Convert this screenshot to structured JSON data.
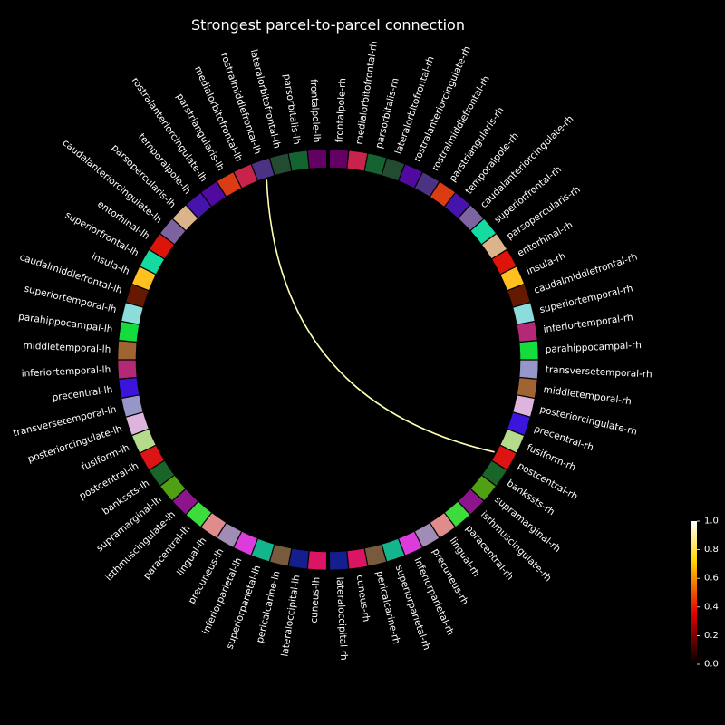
{
  "chart_data": {
    "type": "connectivity-circle",
    "title": "Strongest parcel-to-parcel connection",
    "left_hemisphere_labels": [
      "frontalpole-lh",
      "parsorbitalis-lh",
      "lateralorbitofrontal-lh",
      "rostralmiddlefrontal-lh",
      "medialorbitofrontal-lh",
      "parstriangularis-lh",
      "rostralanteriorcingulate-lh",
      "temporalpole-lh",
      "parsopercularis-lh",
      "caudalanteriorcingulate-lh",
      "entorhinal-lh",
      "superiorfrontal-lh",
      "insula-lh",
      "caudalmiddlefrontal-lh",
      "superiortemporal-lh",
      "parahippocampal-lh",
      "middletemporal-lh",
      "inferiortemporal-lh",
      "precentral-lh",
      "transversetemporal-lh",
      "posteriorcingulate-lh",
      "fusiform-lh",
      "postcentral-lh",
      "bankssts-lh",
      "supramarginal-lh",
      "isthmuscingulate-lh",
      "paracentral-lh",
      "lingual-lh",
      "precuneus-lh",
      "inferiorparietal-lh",
      "superiorparietal-lh",
      "pericalcarine-lh",
      "lateraloccipital-lh",
      "cuneus-lh"
    ],
    "right_hemisphere_labels": [
      "frontalpole-rh",
      "medialorbitofrontal-rh",
      "parsorbitalis-rh",
      "lateralorbitofrontal-rh",
      "rostralanteriorcingulate-rh",
      "rostralmiddlefrontal-rh",
      "parstriangularis-rh",
      "temporalpole-rh",
      "caudalanteriorcingulate-rh",
      "superiorfrontal-rh",
      "parsopercularis-rh",
      "entorhinal-rh",
      "insula-rh",
      "caudalmiddlefrontal-rh",
      "superiortemporal-rh",
      "inferiortemporal-rh",
      "parahippocampal-rh",
      "transversetemporal-rh",
      "middletemporal-rh",
      "posteriorcingulate-rh",
      "precentral-rh",
      "fusiform-rh",
      "postcentral-rh",
      "bankssts-rh",
      "supramarginal-rh",
      "isthmuscingulate-rh",
      "paracentral-rh",
      "lingual-rh",
      "precuneus-rh",
      "inferiorparietal-rh",
      "superiorparietal-rh",
      "pericalcarine-rh",
      "cuneus-rh",
      "lateraloccipital-rh"
    ],
    "node_colors": {
      "frontalpole": "#640064",
      "parsorbitalis": "#146432",
      "lateralorbitofrontal": "#234b32",
      "rostralmiddlefrontal": "#4b3282",
      "medialorbitofrontal": "#c8234b",
      "parstriangularis": "#dc3c14",
      "rostralanteriorcingulate": "#500aa0",
      "temporalpole": "#4614aa",
      "parsopercularis": "#dcb48c",
      "caudalanteriorcingulate": "#7d64a0",
      "entorhinal": "#dc140a",
      "superiorfrontal": "#14dca0",
      "insula": "#ffc020",
      "caudalmiddlefrontal": "#641900",
      "superiortemporal": "#8cdcdc",
      "parahippocampal": "#14dc3c",
      "middletemporal": "#a06432",
      "inferiortemporal": "#b42878",
      "precentral": "#3c14dc",
      "transversetemporal": "#9696c8",
      "posteriorcingulate": "#dcb4dc",
      "fusiform": "#b4dc8c",
      "postcentral": "#dc1414",
      "bankssts": "#196428",
      "supramarginal": "#50a014",
      "isthmuscingulate": "#8c148c",
      "paracentral": "#3cdc3c",
      "lingual": "#e18c8c",
      "precuneus": "#a08cb4",
      "inferiorparietal": "#dc3cdc",
      "superiorparietal": "#14b48c",
      "pericalcarine": "#785a3c",
      "lateraloccipital": "#141e8c",
      "cuneus": "#dc1464"
    },
    "connections": [
      {
        "from": "rostralmiddlefrontal-lh",
        "to": "postcentral-rh",
        "value": 1.0
      }
    ],
    "colorbar": {
      "colormap": "hot",
      "vmin": 0.0,
      "vmax": 1.0,
      "ticks": [
        "0.0",
        "0.2",
        "0.4",
        "0.6",
        "0.8",
        "1.0"
      ]
    }
  }
}
